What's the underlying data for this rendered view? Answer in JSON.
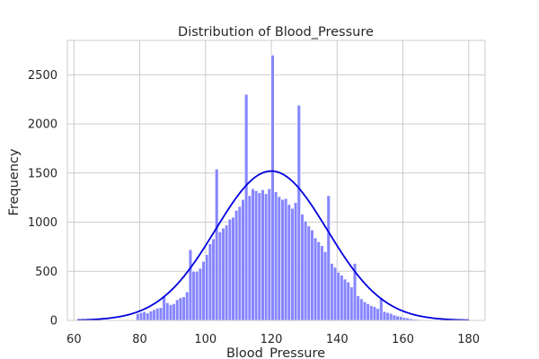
{
  "chart_data": {
    "type": "histogram",
    "title": "Distribution of Blood_Pressure",
    "xlabel": "Blood_Pressure",
    "ylabel": "Frequency",
    "xlim": [
      58,
      185
    ],
    "ylim": [
      0,
      2850
    ],
    "xticks": [
      60,
      80,
      100,
      120,
      140,
      160,
      180
    ],
    "yticks": [
      0,
      500,
      1000,
      1500,
      2000,
      2500
    ],
    "grid": true,
    "bar_color": "#8080ff",
    "bar_edge_color": "#ffffff",
    "kde_color": "#0000dd",
    "bins": [
      {
        "x": 78.9,
        "v": 70
      },
      {
        "x": 79.9,
        "v": 80
      },
      {
        "x": 80.9,
        "v": 90
      },
      {
        "x": 81.9,
        "v": 75
      },
      {
        "x": 82.9,
        "v": 95
      },
      {
        "x": 83.9,
        "v": 110
      },
      {
        "x": 84.9,
        "v": 125
      },
      {
        "x": 85.9,
        "v": 130
      },
      {
        "x": 86.9,
        "v": 250
      },
      {
        "x": 87.9,
        "v": 180
      },
      {
        "x": 88.9,
        "v": 160
      },
      {
        "x": 89.9,
        "v": 170
      },
      {
        "x": 90.9,
        "v": 210
      },
      {
        "x": 91.9,
        "v": 230
      },
      {
        "x": 92.9,
        "v": 240
      },
      {
        "x": 93.9,
        "v": 290
      },
      {
        "x": 94.9,
        "v": 720
      },
      {
        "x": 95.9,
        "v": 500
      },
      {
        "x": 96.9,
        "v": 500
      },
      {
        "x": 97.9,
        "v": 530
      },
      {
        "x": 98.9,
        "v": 600
      },
      {
        "x": 99.9,
        "v": 670
      },
      {
        "x": 100.9,
        "v": 780
      },
      {
        "x": 101.9,
        "v": 830
      },
      {
        "x": 102.9,
        "v": 1540
      },
      {
        "x": 103.9,
        "v": 900
      },
      {
        "x": 104.9,
        "v": 940
      },
      {
        "x": 105.9,
        "v": 970
      },
      {
        "x": 106.9,
        "v": 1030
      },
      {
        "x": 107.9,
        "v": 1050
      },
      {
        "x": 108.9,
        "v": 1120
      },
      {
        "x": 109.9,
        "v": 1160
      },
      {
        "x": 110.9,
        "v": 1230
      },
      {
        "x": 111.9,
        "v": 2300
      },
      {
        "x": 112.9,
        "v": 1270
      },
      {
        "x": 113.9,
        "v": 1340
      },
      {
        "x": 114.9,
        "v": 1320
      },
      {
        "x": 115.9,
        "v": 1300
      },
      {
        "x": 116.9,
        "v": 1330
      },
      {
        "x": 117.9,
        "v": 1290
      },
      {
        "x": 118.9,
        "v": 1340
      },
      {
        "x": 119.9,
        "v": 2700
      },
      {
        "x": 120.9,
        "v": 1310
      },
      {
        "x": 121.9,
        "v": 1260
      },
      {
        "x": 122.9,
        "v": 1230
      },
      {
        "x": 123.9,
        "v": 1240
      },
      {
        "x": 124.9,
        "v": 1180
      },
      {
        "x": 125.9,
        "v": 1140
      },
      {
        "x": 126.9,
        "v": 1200
      },
      {
        "x": 127.9,
        "v": 2190
      },
      {
        "x": 128.9,
        "v": 1080
      },
      {
        "x": 129.9,
        "v": 1010
      },
      {
        "x": 130.9,
        "v": 960
      },
      {
        "x": 131.9,
        "v": 920
      },
      {
        "x": 132.9,
        "v": 840
      },
      {
        "x": 133.9,
        "v": 800
      },
      {
        "x": 134.9,
        "v": 760
      },
      {
        "x": 135.9,
        "v": 700
      },
      {
        "x": 136.9,
        "v": 1270
      },
      {
        "x": 137.9,
        "v": 580
      },
      {
        "x": 138.9,
        "v": 540
      },
      {
        "x": 139.9,
        "v": 490
      },
      {
        "x": 140.9,
        "v": 460
      },
      {
        "x": 141.9,
        "v": 420
      },
      {
        "x": 142.9,
        "v": 390
      },
      {
        "x": 143.9,
        "v": 340
      },
      {
        "x": 144.9,
        "v": 580
      },
      {
        "x": 145.9,
        "v": 250
      },
      {
        "x": 146.9,
        "v": 220
      },
      {
        "x": 147.9,
        "v": 190
      },
      {
        "x": 148.9,
        "v": 170
      },
      {
        "x": 149.9,
        "v": 150
      },
      {
        "x": 150.9,
        "v": 140
      },
      {
        "x": 151.9,
        "v": 120
      },
      {
        "x": 152.9,
        "v": 230
      },
      {
        "x": 153.9,
        "v": 90
      },
      {
        "x": 154.9,
        "v": 80
      },
      {
        "x": 155.9,
        "v": 70
      },
      {
        "x": 156.9,
        "v": 55
      },
      {
        "x": 157.9,
        "v": 45
      },
      {
        "x": 158.9,
        "v": 40
      },
      {
        "x": 159.9,
        "v": 30
      },
      {
        "x": 160.9,
        "v": 25
      },
      {
        "x": 161.9,
        "v": 18
      },
      {
        "x": 162.9,
        "v": 12
      },
      {
        "x": 163.9,
        "v": 10
      },
      {
        "x": 164.9,
        "v": 8
      }
    ],
    "kde": {
      "mean": 120,
      "sd": 17,
      "peak": 1520,
      "x_min": 61,
      "x_max": 180
    }
  }
}
